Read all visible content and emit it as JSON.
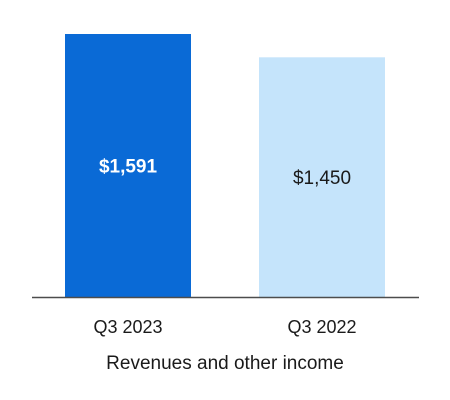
{
  "chart_data": {
    "type": "bar",
    "categories": [
      "Q3 2023",
      "Q3 2022"
    ],
    "values": [
      1591,
      1450
    ],
    "value_labels": [
      "$1,591",
      "$1,450"
    ],
    "xlabel": "Revenues and other income",
    "ylabel": "",
    "ylim": [
      0,
      1591
    ],
    "grid": false,
    "legend": "none",
    "colors": {
      "bar_1": "#0a6ad6",
      "bar_2": "#c5e4fb",
      "label_on_dark": "#ffffff",
      "label_on_light": "#1a1a1a",
      "axis": "#4d4d4d"
    },
    "value_label_bold": [
      true,
      false
    ]
  }
}
